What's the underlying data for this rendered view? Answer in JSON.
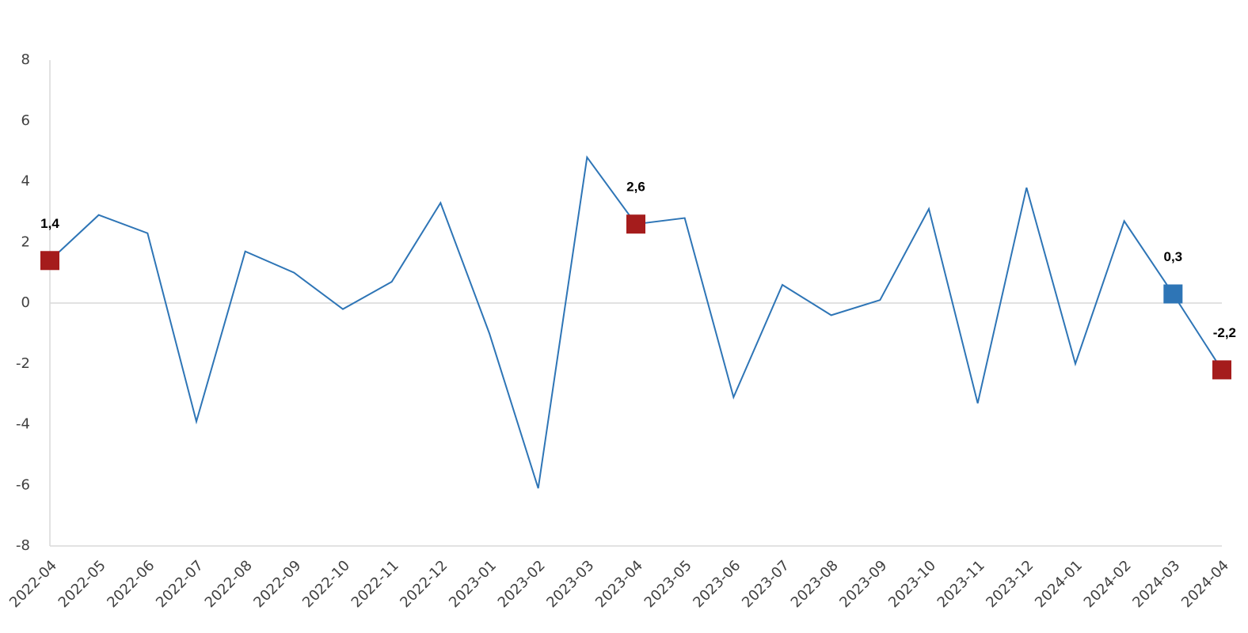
{
  "chart_data": {
    "type": "line",
    "x": [
      "2022-04",
      "2022-05",
      "2022-06",
      "2022-07",
      "2022-08",
      "2022-09",
      "2022-10",
      "2022-11",
      "2022-12",
      "2023-01",
      "2023-02",
      "2023-03",
      "2023-04",
      "2023-05",
      "2023-06",
      "2023-07",
      "2023-08",
      "2023-09",
      "2023-10",
      "2023-11",
      "2023-12",
      "2024-01",
      "2024-02",
      "2024-03",
      "2024-04"
    ],
    "series": [
      {
        "color": "#2e75b6",
        "values": [
          1.4,
          2.9,
          2.3,
          -3.9,
          1.7,
          1.0,
          -0.2,
          0.7,
          3.3,
          -1.0,
          -6.1,
          4.8,
          2.6,
          2.8,
          -3.1,
          0.6,
          -0.4,
          0.1,
          3.1,
          -3.3,
          3.8,
          -2.0,
          2.7,
          0.3,
          -2.2
        ],
        "value_labels": [
          "1,4",
          null,
          null,
          null,
          null,
          null,
          null,
          null,
          null,
          null,
          null,
          null,
          "2,6",
          null,
          null,
          null,
          null,
          null,
          null,
          null,
          null,
          null,
          null,
          "0,3",
          "-2,2"
        ],
        "marker_colors": [
          "#a51c1c",
          null,
          null,
          null,
          null,
          null,
          null,
          null,
          null,
          null,
          null,
          null,
          "#a51c1c",
          null,
          null,
          null,
          null,
          null,
          null,
          null,
          null,
          null,
          null,
          "#2e75b6",
          "#a51c1c"
        ]
      }
    ],
    "ylim": [
      -8,
      8
    ],
    "yticks": [
      -8,
      -6,
      -4,
      -2,
      0,
      2,
      4,
      6,
      8
    ],
    "grid": false
  }
}
